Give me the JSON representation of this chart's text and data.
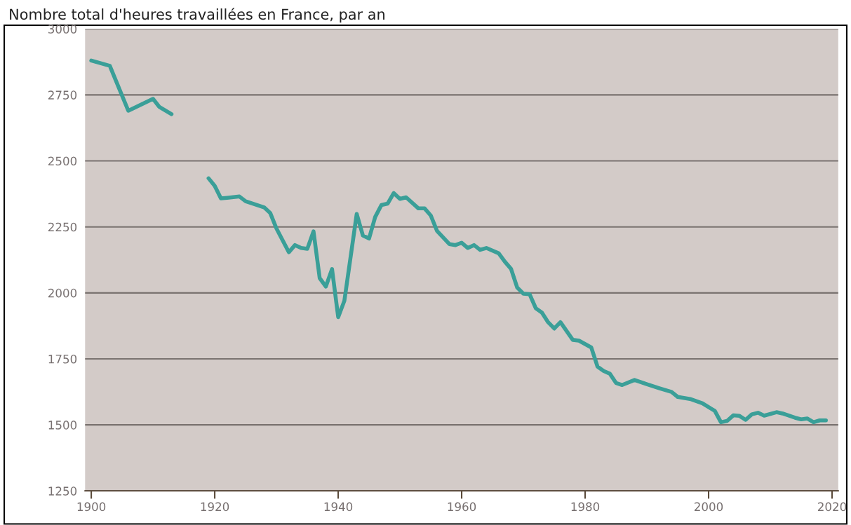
{
  "chart_data": {
    "type": "line",
    "title": "Nombre total d'heures travaillées en France, par an",
    "x": [
      1900,
      1903,
      1906,
      1910,
      1911,
      1913,
      1914,
      1919,
      1920,
      1921,
      1922,
      1924,
      1925,
      1928,
      1929,
      1930,
      1932,
      1933,
      1934,
      1935,
      1936,
      1937,
      1938,
      1939,
      1940,
      1941,
      1943,
      1944,
      1945,
      1946,
      1947,
      1948,
      1949,
      1950,
      1951,
      1953,
      1954,
      1955,
      1956,
      1958,
      1959,
      1960,
      1961,
      1962,
      1963,
      1964,
      1966,
      1967,
      1968,
      1969,
      1970,
      1971,
      1972,
      1973,
      1974,
      1975,
      1976,
      1978,
      1979,
      1981,
      1982,
      1983,
      1984,
      1985,
      1986,
      1988,
      1990,
      1992,
      1994,
      1995,
      1997,
      1999,
      2001,
      2002,
      2003,
      2004,
      2005,
      2006,
      2007,
      2008,
      2009,
      2011,
      2012,
      2014,
      2015,
      2016,
      2017,
      2018,
      2019
    ],
    "series": [
      {
        "color": "#3a9f98",
        "values": [
          2880,
          2860,
          2690,
          2735,
          2705,
          2677,
          null,
          2434,
          2405,
          2358,
          2360,
          2365,
          2347,
          2324,
          2302,
          2244,
          2154,
          2181,
          2170,
          2167,
          2233,
          2056,
          2024,
          2090,
          1908,
          1970,
          2299,
          2217,
          2206,
          2288,
          2333,
          2338,
          2378,
          2356,
          2362,
          2320,
          2320,
          2293,
          2235,
          2185,
          2181,
          2190,
          2170,
          2181,
          2163,
          2170,
          2150,
          2118,
          2091,
          2020,
          1997,
          1995,
          1942,
          1925,
          1889,
          1865,
          1889,
          1822,
          1819,
          1793,
          1721,
          1704,
          1694,
          1659,
          1651,
          1670,
          1654,
          1639,
          1625,
          1606,
          1598,
          1582,
          1553,
          1510,
          1515,
          1536,
          1534,
          1519,
          1540,
          1546,
          1535,
          1548,
          1543,
          1527,
          1521,
          1524,
          1510,
          1517,
          1517
        ]
      }
    ],
    "xlim": [
      1899,
      2021
    ],
    "xticks": [
      1900,
      1920,
      1940,
      1960,
      1980,
      2000,
      2020
    ],
    "ylim": [
      1250,
      3000
    ],
    "yticks": [
      1250,
      1500,
      1750,
      2000,
      2250,
      2500,
      2750,
      3000
    ],
    "grid": "y",
    "marker": "none",
    "line_style": "solid"
  }
}
